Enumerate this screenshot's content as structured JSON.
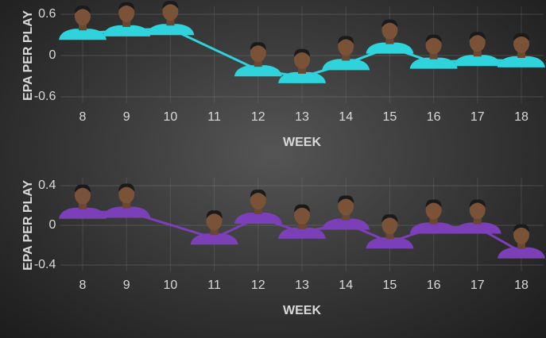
{
  "chart_data": [
    {
      "type": "line",
      "x_label": "WEEK",
      "y_label": "EPA PER PLAY",
      "x": [
        8,
        9,
        10,
        12,
        13,
        14,
        15,
        16,
        17,
        18
      ],
      "series": [
        {
          "color": "#2fd3dc",
          "values": [
            0.32,
            0.37,
            0.39,
            -0.21,
            -0.31,
            -0.12,
            0.12,
            -0.1,
            -0.06,
            -0.08
          ]
        }
      ],
      "xlim": [
        7.5,
        18.5
      ],
      "xticks": [
        8,
        9,
        10,
        11,
        12,
        13,
        14,
        15,
        16,
        17,
        18
      ],
      "ylim": [
        -0.6,
        0.6
      ],
      "yticks": [
        -0.6,
        0,
        0.6
      ],
      "grid": true
    },
    {
      "type": "line",
      "x_label": "WEEK",
      "y_label": "EPA PER PLAY",
      "x": [
        8,
        9,
        11,
        12,
        13,
        14,
        15,
        16,
        17,
        18
      ],
      "series": [
        {
          "color": "#7b3fb8",
          "values": [
            0.13,
            0.14,
            -0.13,
            0.08,
            -0.07,
            0.02,
            -0.17,
            -0.02,
            -0.02,
            -0.27
          ]
        }
      ],
      "xlim": [
        7.5,
        18.5
      ],
      "xticks": [
        8,
        9,
        10,
        11,
        12,
        13,
        14,
        15,
        16,
        17,
        18
      ],
      "ylim": [
        -0.4,
        0.4
      ],
      "yticks": [
        -0.4,
        0,
        0.4
      ],
      "grid": true
    }
  ]
}
